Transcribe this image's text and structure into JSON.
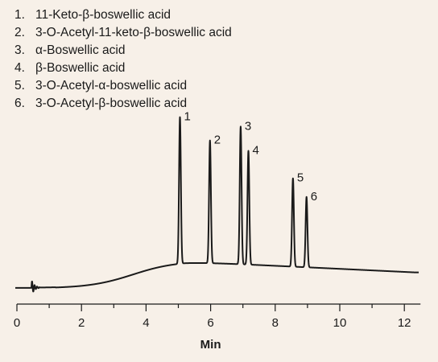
{
  "chart_data": {
    "type": "line",
    "title": "",
    "xlabel": "Min",
    "ylabel": "",
    "xlim": [
      0,
      12.5
    ],
    "ylim": [
      0,
      1
    ],
    "xticks": [
      "0",
      "2",
      "4",
      "6",
      "8",
      "10",
      "12"
    ],
    "grid": false,
    "legend": [
      {
        "num": "1.",
        "name": "11-Keto-β-boswellic acid"
      },
      {
        "num": "2.",
        "name": "3-O-Acetyl-11-keto-β-boswellic acid"
      },
      {
        "num": "3.",
        "name": "α-Boswellic acid"
      },
      {
        "num": "4.",
        "name": "β-Boswellic acid"
      },
      {
        "num": "5.",
        "name": "3-O-Acetyl-α-boswellic acid"
      },
      {
        "num": "6.",
        "name": "3-O-Acetyl-β-boswellic acid"
      }
    ],
    "peaks": [
      {
        "label": "1",
        "x": 5.05,
        "height": 0.98
      },
      {
        "label": "2",
        "x": 5.98,
        "height": 0.82
      },
      {
        "label": "3",
        "x": 6.93,
        "height": 0.92
      },
      {
        "label": "4",
        "x": 7.17,
        "height": 0.76
      },
      {
        "label": "5",
        "x": 8.55,
        "height": 0.59
      },
      {
        "label": "6",
        "x": 8.97,
        "height": 0.47
      }
    ],
    "line_color": "#1a1a1a"
  }
}
